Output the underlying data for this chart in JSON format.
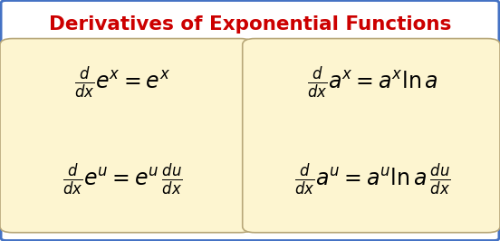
{
  "title": "Derivatives of Exponential Functions",
  "title_color": "#cc0000",
  "title_fontsize": 15.5,
  "bg_color": "#ffffff",
  "box_color": "#fdf5d0",
  "border_color": "#4472c4",
  "box_edge_color": "#b8a87a",
  "formula_color": "#000000",
  "figsize": [
    5.52,
    2.66
  ],
  "dpi": 100,
  "formula_fs": 17
}
